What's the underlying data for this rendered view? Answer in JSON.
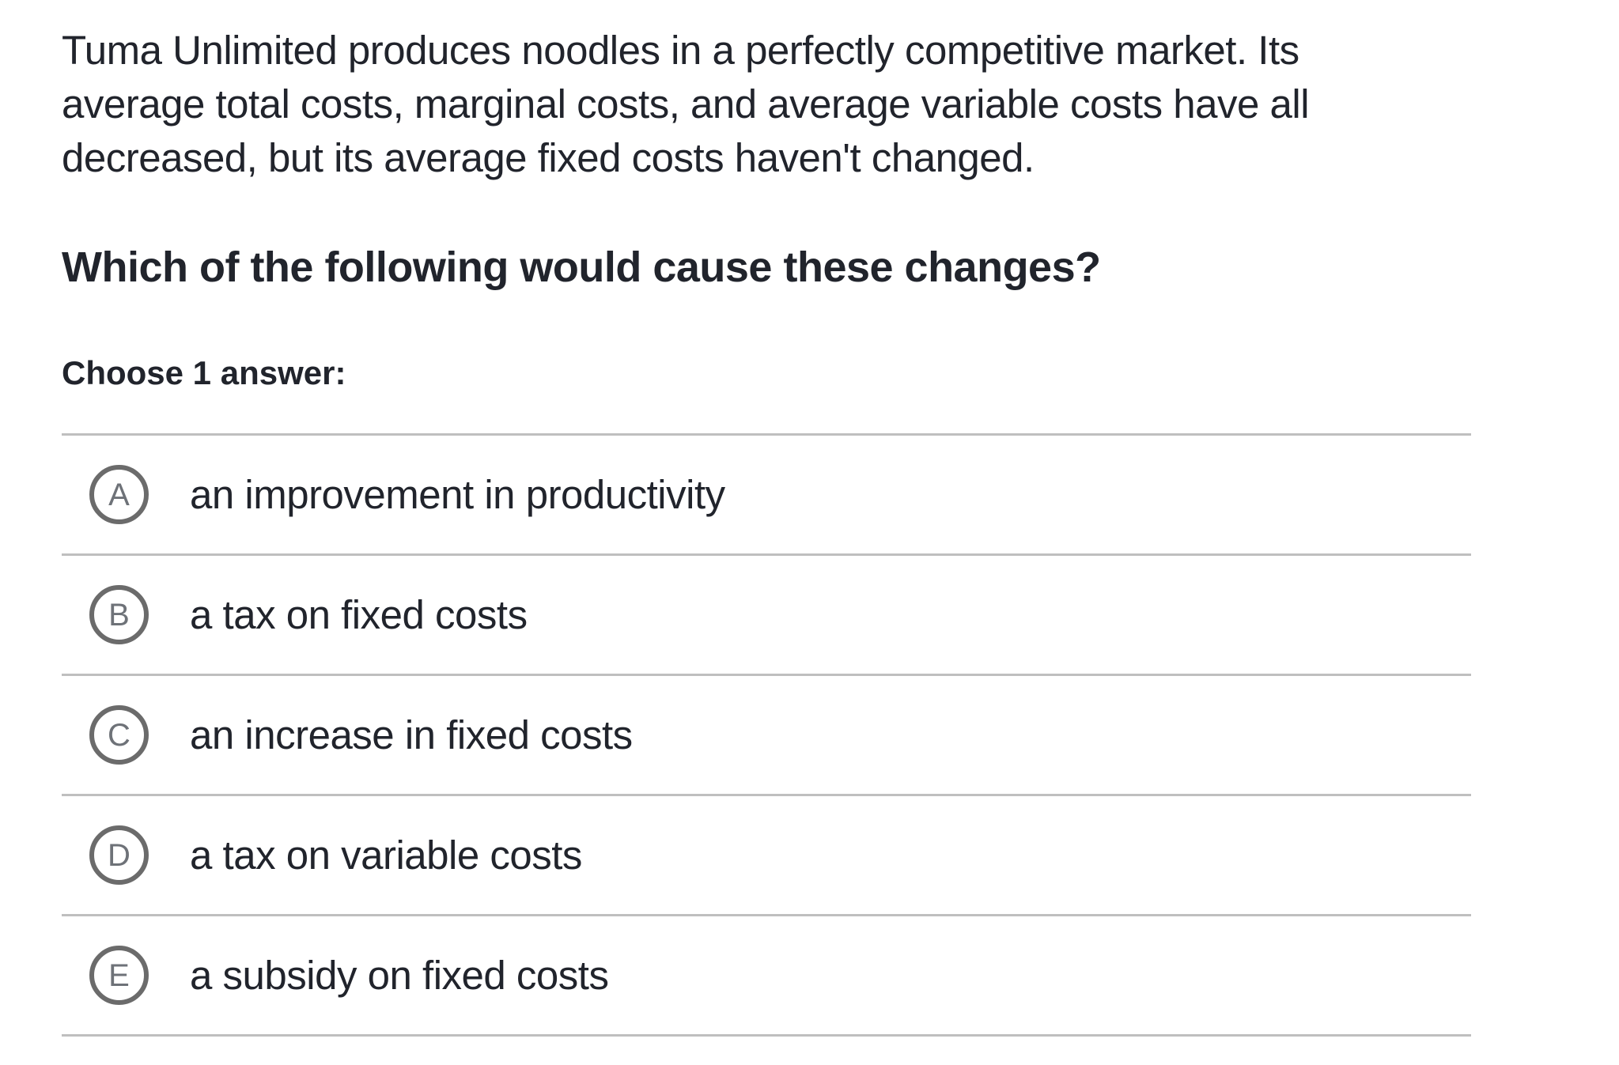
{
  "question": {
    "paragraph_lines": [
      "Tuma Unlimited produces noodles in a perfectly competitive market. Its",
      "average total costs, marginal costs, and average variable costs have all",
      "decreased, but its average fixed costs haven't changed."
    ],
    "prompt": "Which of the following would cause these changes?",
    "choose_label": "Choose 1 answer:"
  },
  "options": [
    {
      "letter": "A",
      "text": "an improvement in productivity"
    },
    {
      "letter": "B",
      "text": "a tax on fixed costs"
    },
    {
      "letter": "C",
      "text": "an increase in fixed costs"
    },
    {
      "letter": "D",
      "text": "a tax on variable costs"
    },
    {
      "letter": "E",
      "text": "a subsidy on fixed costs"
    }
  ],
  "colors": {
    "text": "#21242c",
    "radio_border": "#6b6b6b",
    "radio_letter": "#6e7278",
    "divider": "#bfbfbf",
    "background": "#ffffff"
  }
}
